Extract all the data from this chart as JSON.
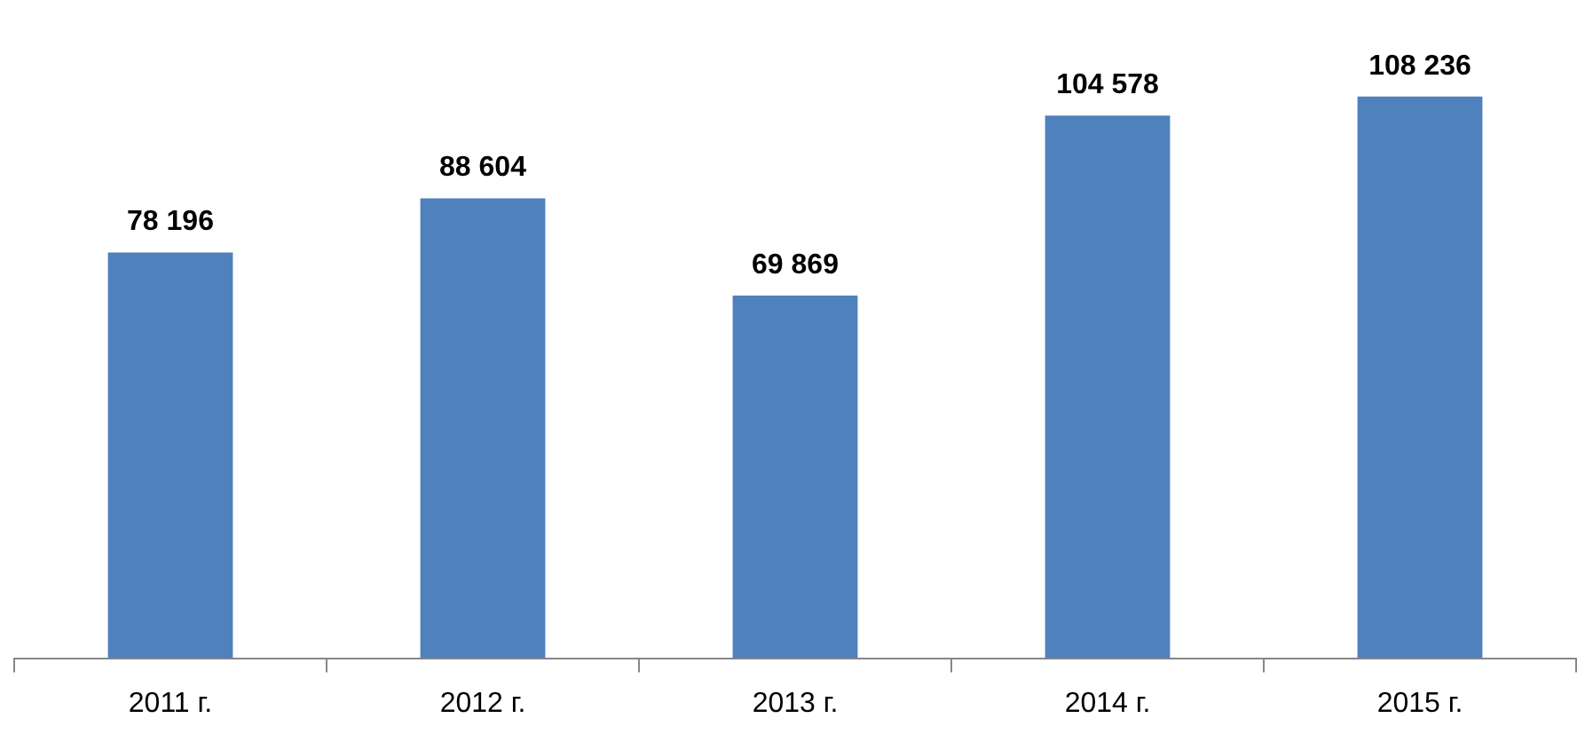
{
  "chart_data": {
    "type": "bar",
    "categories": [
      "2011 г.",
      "2012 г.",
      "2013 г.",
      "2014 г.",
      "2015 г."
    ],
    "values": [
      78196,
      88604,
      69869,
      104578,
      108236
    ],
    "value_labels": [
      "78 196",
      "88 604",
      "69 869",
      "104 578",
      "108 236"
    ],
    "color": "#4f81bd"
  }
}
